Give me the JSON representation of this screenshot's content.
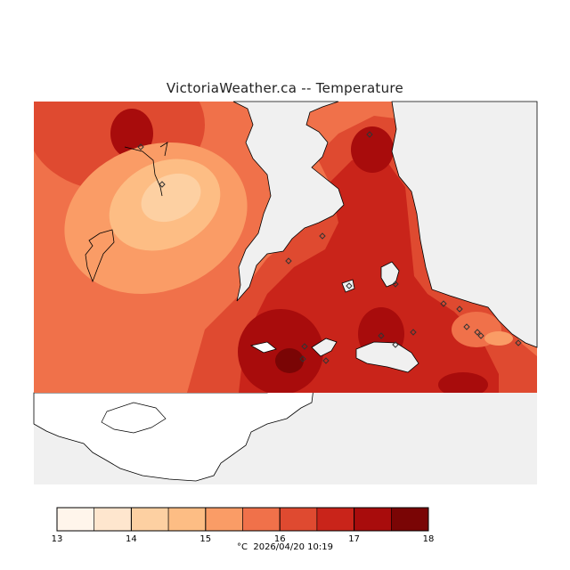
{
  "title": "VictoriaWeather.ca -- Temperature",
  "legend": {
    "unit": "°C",
    "timestamp": "2026/04/20 10:19",
    "ticks": [
      "13",
      "14",
      "15",
      "16",
      "17",
      "18"
    ],
    "bins": [
      {
        "min": 13.0,
        "max": 13.5,
        "color": "#fff5eb"
      },
      {
        "min": 13.5,
        "max": 14.0,
        "color": "#fee6ce"
      },
      {
        "min": 14.0,
        "max": 14.5,
        "color": "#fdd0a2"
      },
      {
        "min": 14.5,
        "max": 15.0,
        "color": "#fdbd84"
      },
      {
        "min": 15.0,
        "max": 15.5,
        "color": "#fa9c66"
      },
      {
        "min": 15.5,
        "max": 16.0,
        "color": "#f0714a"
      },
      {
        "min": 16.0,
        "max": 16.5,
        "color": "#df4a30"
      },
      {
        "min": 16.5,
        "max": 17.0,
        "color": "#c9241a"
      },
      {
        "min": 17.0,
        "max": 17.5,
        "color": "#a80c0c"
      },
      {
        "min": 17.5,
        "max": 18.0,
        "color": "#7a0505"
      }
    ]
  },
  "colors": {
    "no_data": "#f0f0f0",
    "coastline": "#000000",
    "station": "#333333"
  },
  "icons": {
    "station": "diamond-station-icon"
  }
}
